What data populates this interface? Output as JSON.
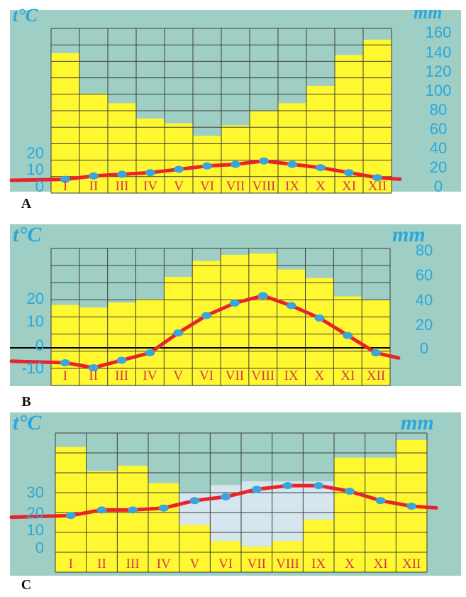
{
  "colors": {
    "panel_bg": "#9fcfc4",
    "precip_fill": "#fff830",
    "grid": "#3c3c3c",
    "temp_line": "#e8232c",
    "temp_marker": "#3aa5dc",
    "axis_text": "#2aa7dc",
    "month_text": "#d23a4a",
    "light_area": "#d6e6ee"
  },
  "chart_data": [
    {
      "type": "bar",
      "panel_label": "A",
      "left_unit": "t°C",
      "right_unit": "mm",
      "categories": [
        "I",
        "II",
        "III",
        "IV",
        "V",
        "VI",
        "VII",
        "VIII",
        "IX",
        "X",
        "XI",
        "XII"
      ],
      "left_ticks": [
        "0",
        "10",
        "20"
      ],
      "right_ticks": [
        "0",
        "20",
        "40",
        "60",
        "80",
        "100",
        "120",
        "140",
        "160"
      ],
      "series": [
        {
          "kind": "precipitation",
          "values": [
            138,
            96,
            86,
            70,
            65,
            52,
            63,
            78,
            86,
            104,
            136,
            152
          ]
        },
        {
          "kind": "temperature",
          "values": [
            4,
            6,
            7,
            8,
            10,
            12,
            13,
            15,
            13,
            11,
            8,
            5
          ]
        }
      ],
      "ylim_right": [
        0,
        160
      ]
    },
    {
      "type": "bar",
      "panel_label": "B",
      "left_unit": "t°C",
      "right_unit": "mm",
      "categories": [
        "I",
        "II",
        "III",
        "IV",
        "V",
        "VI",
        "VII",
        "VIII",
        "IX",
        "X",
        "XI",
        "XII"
      ],
      "left_ticks": [
        "-10",
        "0",
        "10",
        "20"
      ],
      "right_ticks": [
        "0",
        "20",
        "40",
        "60",
        "80"
      ],
      "series": [
        {
          "kind": "precipitation",
          "values": [
            35,
            33,
            37,
            40,
            58,
            71,
            76,
            77,
            64,
            57,
            42,
            39
          ]
        },
        {
          "kind": "temperature",
          "values": [
            -6,
            -8,
            -5,
            -2,
            6,
            13,
            18,
            21,
            17,
            12,
            5,
            -2
          ]
        }
      ],
      "ylim_right": [
        0,
        80
      ]
    },
    {
      "type": "bar",
      "panel_label": "C",
      "left_unit": "t°C",
      "right_unit": "mm",
      "categories": [
        "I",
        "II",
        "III",
        "IV",
        "V",
        "VI",
        "VII",
        "VIII",
        "IX",
        "X",
        "XI",
        "XII"
      ],
      "left_ticks": [
        "0",
        "10",
        "20",
        "30"
      ],
      "right_ticks": [],
      "series": [
        {
          "kind": "precipitation",
          "values": [
            72,
            54,
            58,
            45,
            14,
            2,
            -2,
            2,
            18,
            64,
            64,
            77
          ]
        },
        {
          "kind": "temperature",
          "values": [
            17,
            20,
            20,
            21,
            25,
            27,
            31,
            33,
            33,
            30,
            25,
            22
          ]
        }
      ],
      "ylim_left": [
        -3,
        40
      ]
    }
  ]
}
